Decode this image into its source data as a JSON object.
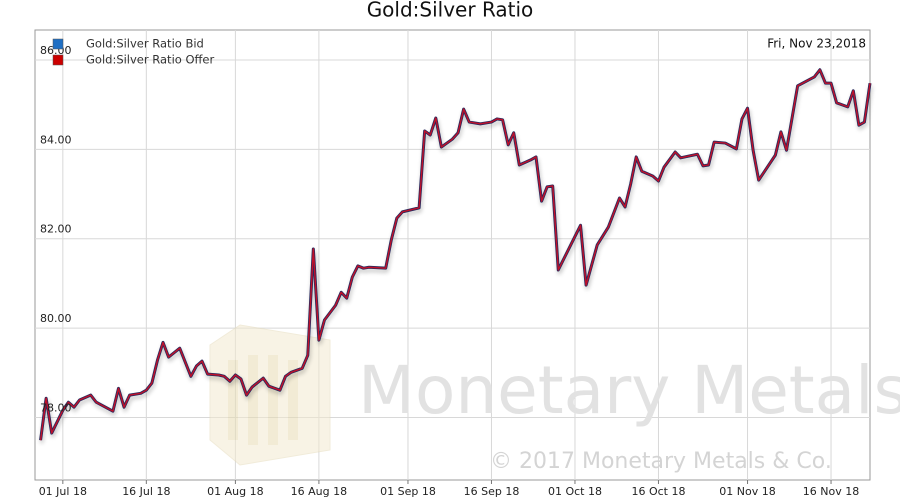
{
  "chart_data": {
    "type": "line",
    "title": "Gold:Silver Ratio",
    "date_label": "Fri, Nov 23,2018",
    "watermark": "Monetary Metals",
    "copyright": "© 2017 Monetary Metals & Co.",
    "x": [
      "2018-06-27",
      "2018-06-28",
      "2018-06-29",
      "2018-07-01",
      "2018-07-02",
      "2018-07-03",
      "2018-07-04",
      "2018-07-06",
      "2018-07-07",
      "2018-07-10",
      "2018-07-11",
      "2018-07-12",
      "2018-07-13",
      "2018-07-15",
      "2018-07-16",
      "2018-07-17",
      "2018-07-18",
      "2018-07-19",
      "2018-07-20",
      "2018-07-22",
      "2018-07-24",
      "2018-07-25",
      "2018-07-26",
      "2018-07-27",
      "2018-07-29",
      "2018-07-30",
      "2018-07-31",
      "2018-08-01",
      "2018-08-02",
      "2018-08-03",
      "2018-08-04",
      "2018-08-06",
      "2018-08-07",
      "2018-08-09",
      "2018-08-10",
      "2018-08-11",
      "2018-08-13",
      "2018-08-14",
      "2018-08-15",
      "2018-08-16",
      "2018-08-17",
      "2018-08-19",
      "2018-08-20",
      "2018-08-21",
      "2018-08-22",
      "2018-08-23",
      "2018-08-24",
      "2018-08-25",
      "2018-08-28",
      "2018-08-29",
      "2018-08-30",
      "2018-08-31",
      "2018-09-03",
      "2018-09-04",
      "2018-09-05",
      "2018-09-06",
      "2018-09-07",
      "2018-09-09",
      "2018-09-10",
      "2018-09-11",
      "2018-09-12",
      "2018-09-14",
      "2018-09-16",
      "2018-09-17",
      "2018-09-18",
      "2018-09-19",
      "2018-09-20",
      "2018-09-21",
      "2018-09-23",
      "2018-09-24",
      "2018-09-25",
      "2018-09-26",
      "2018-09-27",
      "2018-09-28",
      "2018-10-02",
      "2018-10-03",
      "2018-10-05",
      "2018-10-07",
      "2018-10-09",
      "2018-10-10",
      "2018-10-11",
      "2018-10-12",
      "2018-10-13",
      "2018-10-15",
      "2018-10-16",
      "2018-10-17",
      "2018-10-19",
      "2018-10-20",
      "2018-10-23",
      "2018-10-24",
      "2018-10-25",
      "2018-10-26",
      "2018-10-28",
      "2018-10-30",
      "2018-10-31",
      "2018-11-01",
      "2018-11-02",
      "2018-11-03",
      "2018-11-06",
      "2018-11-07",
      "2018-11-08",
      "2018-11-10",
      "2018-11-13",
      "2018-11-14",
      "2018-11-15",
      "2018-11-16",
      "2018-11-17",
      "2018-11-19",
      "2018-11-20",
      "2018-11-21",
      "2018-11-22",
      "2018-11-23"
    ],
    "series": [
      {
        "name": "Gold:Silver Ratio Bid",
        "color": "#1f6fc4",
        "line_color": "#2b2b5c",
        "values": [
          77.49,
          78.43,
          77.65,
          78.16,
          78.34,
          78.23,
          78.39,
          78.5,
          78.34,
          78.14,
          78.65,
          78.23,
          78.5,
          78.54,
          78.61,
          78.77,
          79.28,
          79.68,
          79.35,
          79.55,
          78.92,
          79.15,
          79.26,
          78.97,
          78.95,
          78.92,
          78.81,
          78.95,
          78.86,
          78.5,
          78.68,
          78.88,
          78.7,
          78.61,
          78.92,
          79.01,
          79.1,
          79.39,
          81.77,
          79.73,
          80.18,
          80.51,
          80.8,
          80.67,
          81.14,
          81.39,
          81.34,
          81.36,
          81.34,
          81.97,
          82.46,
          82.6,
          82.69,
          84.41,
          84.32,
          84.7,
          84.05,
          84.23,
          84.37,
          84.9,
          84.61,
          84.57,
          84.61,
          84.68,
          84.66,
          84.1,
          84.37,
          83.65,
          83.76,
          83.83,
          82.84,
          83.16,
          83.18,
          81.3,
          82.3,
          80.96,
          81.86,
          82.26,
          82.91,
          82.71,
          83.22,
          83.83,
          83.51,
          83.4,
          83.29,
          83.6,
          83.94,
          83.81,
          83.89,
          83.63,
          83.65,
          84.16,
          84.14,
          84.01,
          84.68,
          84.92,
          83.98,
          83.31,
          83.87,
          84.39,
          83.98,
          85.42,
          85.62,
          85.78,
          85.48,
          85.48,
          85.04,
          84.95,
          85.31,
          84.54,
          84.61,
          85.48
        ]
      },
      {
        "name": "Gold:Silver Ratio Offer",
        "color": "#cc0000",
        "line_color": "#c0102a",
        "values": [
          77.49,
          78.43,
          77.65,
          78.16,
          78.34,
          78.23,
          78.39,
          78.5,
          78.34,
          78.14,
          78.65,
          78.23,
          78.5,
          78.54,
          78.61,
          78.77,
          79.28,
          79.68,
          79.35,
          79.55,
          78.92,
          79.15,
          79.26,
          78.97,
          78.95,
          78.92,
          78.81,
          78.95,
          78.86,
          78.5,
          78.68,
          78.88,
          78.7,
          78.61,
          78.92,
          79.01,
          79.1,
          79.39,
          81.77,
          79.73,
          80.18,
          80.51,
          80.8,
          80.67,
          81.14,
          81.39,
          81.34,
          81.36,
          81.34,
          81.97,
          82.46,
          82.6,
          82.69,
          84.41,
          84.32,
          84.7,
          84.05,
          84.23,
          84.37,
          84.9,
          84.61,
          84.57,
          84.61,
          84.68,
          84.66,
          84.1,
          84.37,
          83.65,
          83.76,
          83.83,
          82.84,
          83.16,
          83.18,
          81.3,
          82.3,
          80.96,
          81.86,
          82.26,
          82.91,
          82.71,
          83.22,
          83.83,
          83.51,
          83.4,
          83.29,
          83.6,
          83.94,
          83.81,
          83.89,
          83.63,
          83.65,
          84.16,
          84.14,
          84.01,
          84.68,
          84.92,
          83.98,
          83.31,
          83.87,
          84.39,
          83.98,
          85.42,
          85.62,
          85.78,
          85.48,
          85.48,
          85.04,
          84.95,
          85.31,
          84.54,
          84.61,
          85.48
        ]
      }
    ],
    "xlim": [
      "2018-06-26",
      "2018-11-23"
    ],
    "xticks": [
      {
        "value": "2018-07-01",
        "label": "01 Jul 18"
      },
      {
        "value": "2018-07-16",
        "label": "16 Jul 18"
      },
      {
        "value": "2018-08-01",
        "label": "01 Aug 18"
      },
      {
        "value": "2018-08-16",
        "label": "16 Aug 18"
      },
      {
        "value": "2018-09-01",
        "label": "01 Sep 18"
      },
      {
        "value": "2018-09-16",
        "label": "16 Sep 18"
      },
      {
        "value": "2018-10-01",
        "label": "01 Oct 18"
      },
      {
        "value": "2018-10-16",
        "label": "16 Oct 18"
      },
      {
        "value": "2018-11-01",
        "label": "01 Nov 18"
      },
      {
        "value": "2018-11-16",
        "label": "16 Nov 18"
      }
    ],
    "ylim": [
      76.6,
      86.67
    ],
    "yticks": [
      {
        "value": 78,
        "label": "78.00"
      },
      {
        "value": 80,
        "label": "80.00"
      },
      {
        "value": 82,
        "label": "82.00"
      },
      {
        "value": 84,
        "label": "84.00"
      },
      {
        "value": 86,
        "label": "86.00"
      }
    ],
    "grid": true,
    "legend": "top-left"
  }
}
